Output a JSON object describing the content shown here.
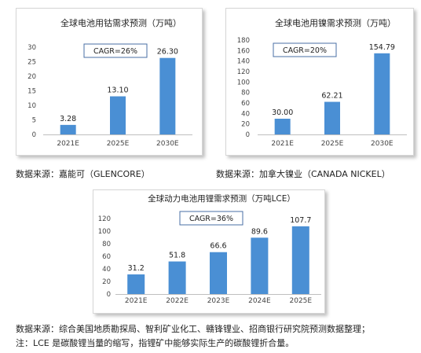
{
  "chart_data": [
    {
      "type": "bar",
      "title": "全球电池用钴需求预测（万吨）",
      "annotation": "CAGR=26%",
      "categories": [
        "2021E",
        "2025E",
        "2030E"
      ],
      "values": [
        3.28,
        13.1,
        26.3
      ],
      "data_labels": [
        "3.28",
        "13.10",
        "26.30"
      ],
      "yticks": [
        "0",
        "5",
        "10",
        "15",
        "20",
        "25",
        "30"
      ],
      "ylim": [
        0,
        30
      ],
      "color": "#4a8fd4",
      "grid": false
    },
    {
      "type": "bar",
      "title": "全球电池用镍需求预测（万吨）",
      "annotation": "CAGR=20%",
      "categories": [
        "2021E",
        "2025E",
        "2030E"
      ],
      "values": [
        30.0,
        62.21,
        154.79
      ],
      "data_labels": [
        "30.00",
        "62.21",
        "154.79"
      ],
      "yticks": [
        "0",
        "20",
        "40",
        "60",
        "80",
        "100",
        "120",
        "140",
        "160",
        "180"
      ],
      "ylim": [
        0,
        180
      ],
      "color": "#4a8fd4",
      "grid": false
    },
    {
      "type": "bar",
      "title": "全球动力电池用锂需求预测（万吨LCE）",
      "annotation": "CAGR=36%",
      "categories": [
        "2021E",
        "2022E",
        "2023E",
        "2024E",
        "2025E"
      ],
      "values": [
        31.2,
        51.8,
        66.6,
        89.6,
        107.7
      ],
      "data_labels": [
        "31.2",
        "51.8",
        "66.6",
        "89.6",
        "107.7"
      ],
      "yticks": [
        "0",
        "20",
        "40",
        "60",
        "80",
        "100",
        "120"
      ],
      "ylim": [
        0,
        120
      ],
      "color": "#4a8fd4",
      "grid": false
    }
  ],
  "sources": {
    "cobalt": "数据来源：嘉能可（GLENCORE）",
    "nickel": "数据来源：加拿大镍业（CANADA NICKEL）",
    "lithium": "数据来源：综合美国地质勘探局、智利矿业化工、赣锋锂业、招商银行研究院预测数据整理；",
    "note": "注：LCE 是碳酸锂当量的缩写，指锂矿中能够实际生产的碳酸锂折合量。"
  }
}
